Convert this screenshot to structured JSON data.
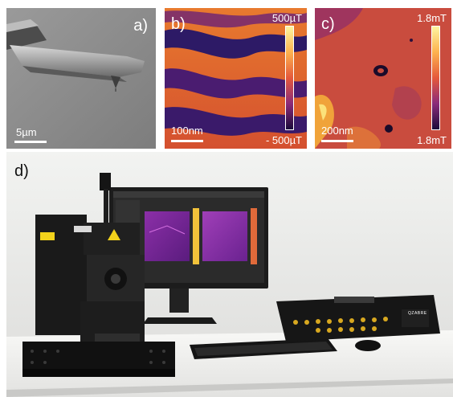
{
  "panels": {
    "a": {
      "letter": "a)",
      "scale_bar_label": "5µm"
    },
    "b": {
      "letter": "b)",
      "scale_bar_label": "100nm",
      "colorbar_max": "500µT",
      "colorbar_min": "- 500µT"
    },
    "c": {
      "letter": "c)",
      "scale_bar_label": "200nm",
      "colorbar_max": "1.8mT",
      "colorbar_min": "1.8mT"
    },
    "d": {
      "letter": "d)",
      "device_label": "QZABRE"
    }
  },
  "colors": {
    "colormap_high": "#fdf5a0",
    "colormap_mid": "#e5593b",
    "colormap_low": "#1b0b3a",
    "sem_gray": "#8e8e8e",
    "instrument_black": "#1a1a1a",
    "warning_yellow": "#f2d21b"
  }
}
